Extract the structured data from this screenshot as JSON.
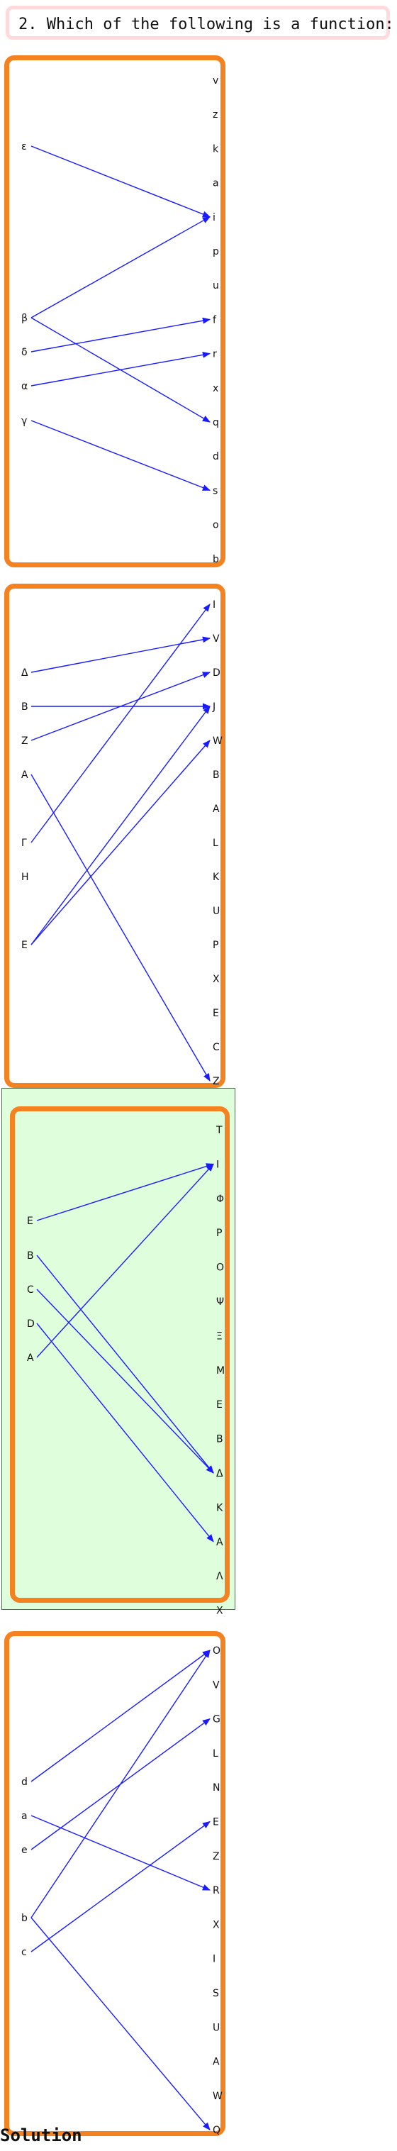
{
  "question": {
    "text": "2. Which of the following is a function:"
  },
  "colors": {
    "panel_border": "#f58220",
    "arrow": "#1a1aff",
    "highlight_bg": "#dfffdc",
    "question_border": "#ffd9dc"
  },
  "options": [
    {
      "id": "option-1",
      "domain": [
        "ε",
        "β",
        "δ",
        "α",
        "γ"
      ],
      "codomain": [
        "v",
        "z",
        "k",
        "a",
        "i",
        "p",
        "u",
        "f",
        "r",
        "x",
        "q",
        "d",
        "s",
        "o",
        "b"
      ],
      "mappings": [
        {
          "from": "ε",
          "to": "i"
        },
        {
          "from": "β",
          "to": "i"
        },
        {
          "from": "β",
          "to": "q"
        },
        {
          "from": "δ",
          "to": "f"
        },
        {
          "from": "α",
          "to": "r"
        },
        {
          "from": "γ",
          "to": "s"
        }
      ],
      "is_solution": false
    },
    {
      "id": "option-2",
      "domain": [
        "Δ",
        "B",
        "Z",
        "A",
        "Γ",
        "H",
        "E"
      ],
      "codomain": [
        "I",
        "V",
        "D",
        "J",
        "W",
        "B",
        "A",
        "L",
        "K",
        "U",
        "P",
        "X",
        "E",
        "C",
        "Z"
      ],
      "mappings": [
        {
          "from": "Δ",
          "to": "V"
        },
        {
          "from": "B",
          "to": "J"
        },
        {
          "from": "Z",
          "to": "D"
        },
        {
          "from": "A",
          "to": "Z"
        },
        {
          "from": "Γ",
          "to": "I"
        },
        {
          "from": "E",
          "to": "J"
        },
        {
          "from": "E",
          "to": "W"
        }
      ],
      "is_solution": false
    },
    {
      "id": "option-3",
      "domain": [
        "E",
        "B",
        "C",
        "D",
        "A"
      ],
      "codomain": [
        "T",
        "I",
        "Φ",
        "P",
        "O",
        "Ψ",
        "Ξ",
        "M",
        "E",
        "B",
        "Δ",
        "K",
        "A",
        "Λ",
        "X"
      ],
      "mappings": [
        {
          "from": "E",
          "to": "I"
        },
        {
          "from": "B",
          "to": "Δ"
        },
        {
          "from": "C",
          "to": "Δ"
        },
        {
          "from": "D",
          "to": "A"
        },
        {
          "from": "A",
          "to": "I"
        }
      ],
      "is_solution": true
    },
    {
      "id": "option-4",
      "domain": [
        "d",
        "a",
        "e",
        "b",
        "c"
      ],
      "codomain": [
        "O",
        "V",
        "G",
        "L",
        "N",
        "E",
        "Z",
        "R",
        "X",
        "I",
        "S",
        "U",
        "A",
        "W",
        "Q"
      ],
      "mappings": [
        {
          "from": "d",
          "to": "O"
        },
        {
          "from": "a",
          "to": "R"
        },
        {
          "from": "e",
          "to": "G"
        },
        {
          "from": "b",
          "to": "O"
        },
        {
          "from": "b",
          "to": "Q"
        },
        {
          "from": "c",
          "to": "E"
        }
      ],
      "is_solution": false
    }
  ],
  "solution_label": "Solution"
}
